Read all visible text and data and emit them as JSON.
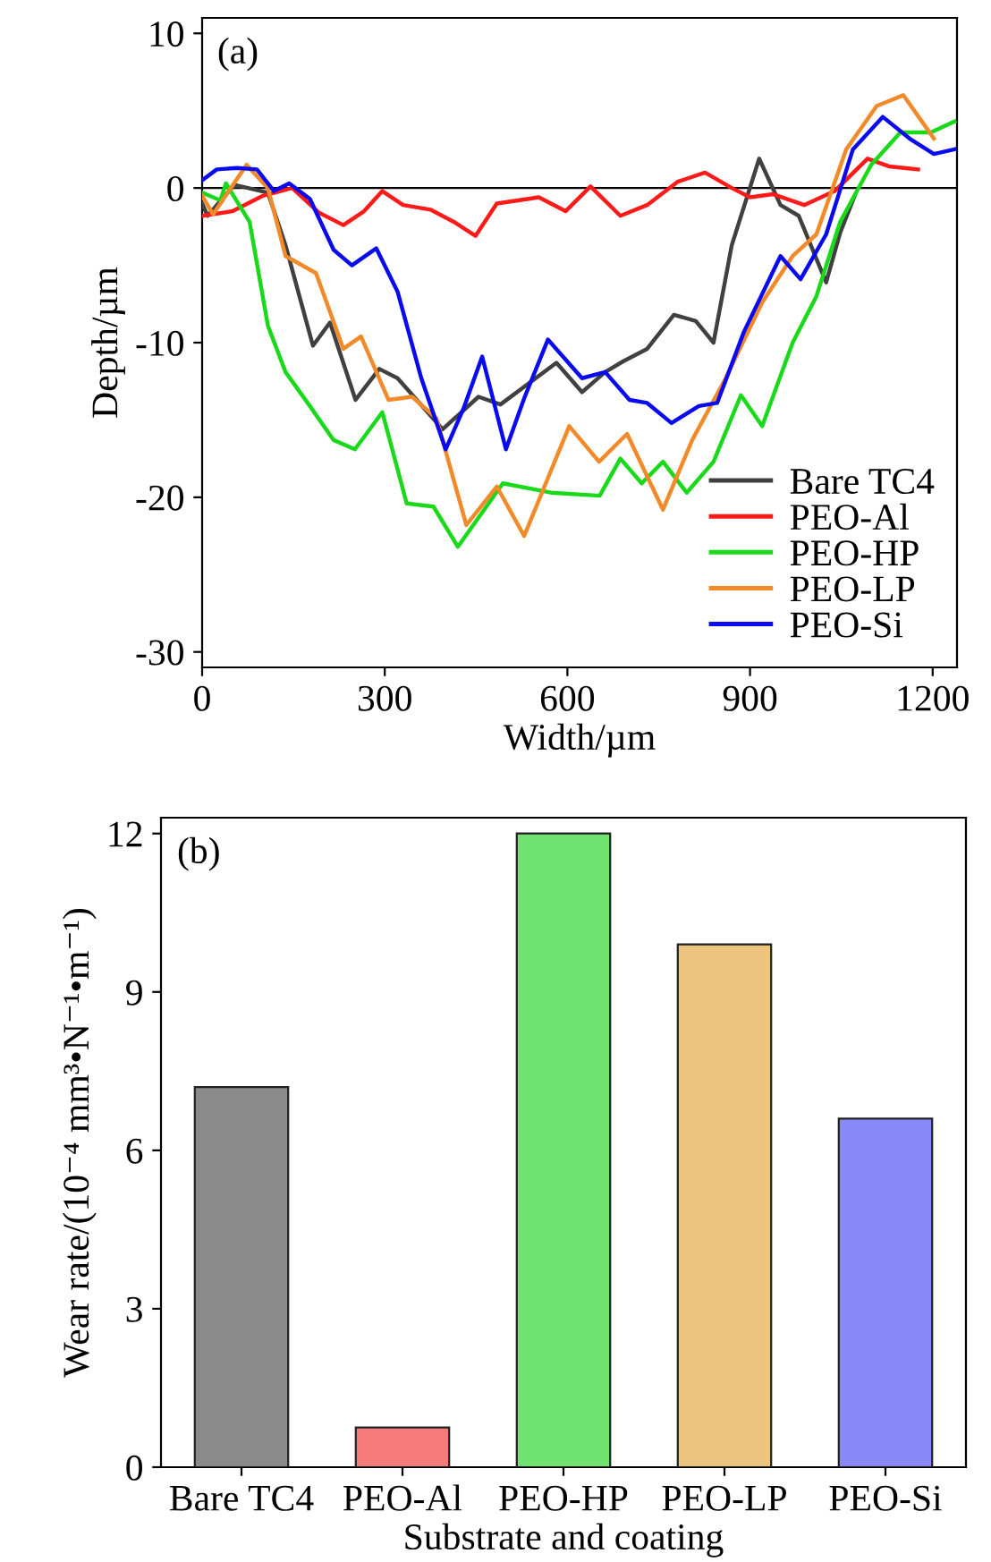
{
  "chart_data": [
    {
      "type": "line",
      "xlabel": "Width/µm",
      "ylabel": "Depth/µm",
      "annotations": [
        "(a)"
      ],
      "xlim": [
        0,
        1240
      ],
      "ylim": [
        -31,
        11
      ],
      "xticks": [
        0,
        300,
        600,
        900,
        1200
      ],
      "yticks": [
        10,
        0,
        -10,
        -20,
        -30
      ],
      "ref_lines": [
        {
          "axis": "y",
          "value": 0,
          "color": "#000000"
        }
      ],
      "legend": "bottom right",
      "marker": "none",
      "line_style": "solid",
      "grid": false,
      "series": [
        {
          "name": "Bare TC4",
          "color": "#404040",
          "x": [
            0,
            9,
            53,
            108,
            137,
            182,
            210,
            252,
            291,
            321,
            395,
            454,
            490,
            582,
            624,
            662,
            692,
            731,
            775,
            811,
            840,
            870,
            915,
            950,
            980,
            1025,
            1048,
            1072
          ],
          "values": [
            -1.0,
            -1.8,
            0.2,
            -0.3,
            -3.7,
            -10.2,
            -8.7,
            -13.7,
            -11.7,
            -12.3,
            -15.6,
            -13.5,
            -14.0,
            -11.3,
            -13.2,
            -11.9,
            -11.2,
            -10.4,
            -8.2,
            -8.6,
            -10.0,
            -3.7,
            1.9,
            -1.1,
            -1.8,
            -6.1,
            -2.9,
            -0.5
          ]
        },
        {
          "name": "PEO-Al",
          "color": "#ff1a1a",
          "x": [
            0,
            50,
            100,
            148,
            192,
            232,
            266,
            296,
            330,
            375,
            414,
            449,
            484,
            519,
            553,
            597,
            638,
            687,
            731,
            781,
            826,
            870,
            900,
            938,
            989,
            1039,
            1093,
            1128,
            1176
          ],
          "values": [
            -1.8,
            -1.5,
            -0.5,
            0.0,
            -1.6,
            -2.4,
            -1.5,
            -0.2,
            -1.1,
            -1.4,
            -2.2,
            -3.1,
            -1.0,
            -0.8,
            -0.6,
            -1.5,
            0.1,
            -1.8,
            -1.1,
            0.4,
            1.0,
            0.0,
            -0.6,
            -0.4,
            -1.1,
            -0.2,
            1.9,
            1.4,
            1.2
          ]
        },
        {
          "name": "PEO-HP",
          "color": "#1ad91a",
          "x": [
            0,
            30,
            39,
            78,
            108,
            137,
            177,
            216,
            251,
            296,
            336,
            380,
            420,
            494,
            573,
            653,
            687,
            722,
            757,
            796,
            840,
            885,
            920,
            970,
            1009,
            1048,
            1099,
            1147,
            1197,
            1236
          ],
          "values": [
            -0.3,
            -0.8,
            0.3,
            -2.2,
            -8.9,
            -11.9,
            -14.1,
            -16.3,
            -16.9,
            -14.5,
            -20.4,
            -20.6,
            -23.2,
            -19.1,
            -19.7,
            -19.9,
            -17.5,
            -19.1,
            -17.7,
            -19.7,
            -17.7,
            -13.4,
            -15.4,
            -10.0,
            -7.0,
            -2.2,
            1.5,
            3.6,
            3.6,
            4.3
          ]
        },
        {
          "name": "PEO-LP",
          "color": "#f28a2a",
          "x": [
            0,
            18,
            73,
            108,
            137,
            187,
            232,
            261,
            306,
            345,
            385,
            434,
            484,
            529,
            603,
            652,
            698,
            757,
            805,
            860,
            920,
            970,
            1009,
            1058,
            1108,
            1152,
            1202
          ],
          "values": [
            -0.5,
            -1.7,
            1.5,
            0.0,
            -4.4,
            -5.5,
            -10.4,
            -9.6,
            -13.7,
            -13.5,
            -14.9,
            -21.8,
            -19.3,
            -22.5,
            -15.4,
            -17.7,
            -15.9,
            -20.8,
            -16.3,
            -12.3,
            -7.4,
            -4.4,
            -3.0,
            2.5,
            5.3,
            6.0,
            3.2
          ]
        },
        {
          "name": "PEO-Si",
          "color": "#0a0aee",
          "x": [
            0,
            24,
            58,
            90,
            118,
            143,
            177,
            216,
            246,
            286,
            321,
            360,
            400,
            430,
            460,
            499,
            529,
            568,
            624,
            662,
            702,
            731,
            771,
            816,
            846,
            890,
            950,
            983,
            1025,
            1069,
            1118,
            1162,
            1202,
            1236
          ],
          "values": [
            0.5,
            1.2,
            1.3,
            1.2,
            -0.2,
            0.3,
            -0.7,
            -4.0,
            -5.0,
            -3.9,
            -6.7,
            -12.3,
            -16.9,
            -14.2,
            -10.9,
            -16.9,
            -13.6,
            -9.8,
            -12.3,
            -11.9,
            -13.7,
            -13.9,
            -15.2,
            -14.1,
            -13.9,
            -9.3,
            -4.4,
            -5.9,
            -3.0,
            2.5,
            4.6,
            3.2,
            2.2,
            2.5
          ]
        }
      ]
    },
    {
      "type": "bar",
      "xlabel": "Substrate and coating",
      "ylabel": "Wear rate/(10⁻⁴ mm³•N⁻¹•m⁻¹)",
      "annotations": [
        "(b)"
      ],
      "categories": [
        "Bare TC4",
        "PEO-Al",
        "PEO-HP",
        "PEO-LP",
        "PEO-Si"
      ],
      "values": [
        7.2,
        0.75,
        12.0,
        9.9,
        6.6
      ],
      "colors": [
        "#8a8a8a",
        "#f57a7a",
        "#6fe26f",
        "#ecc47f",
        "#8888fb"
      ],
      "ylim": [
        0,
        12.3
      ],
      "yticks": [
        0,
        3,
        6,
        9,
        12
      ],
      "grid": false
    }
  ]
}
